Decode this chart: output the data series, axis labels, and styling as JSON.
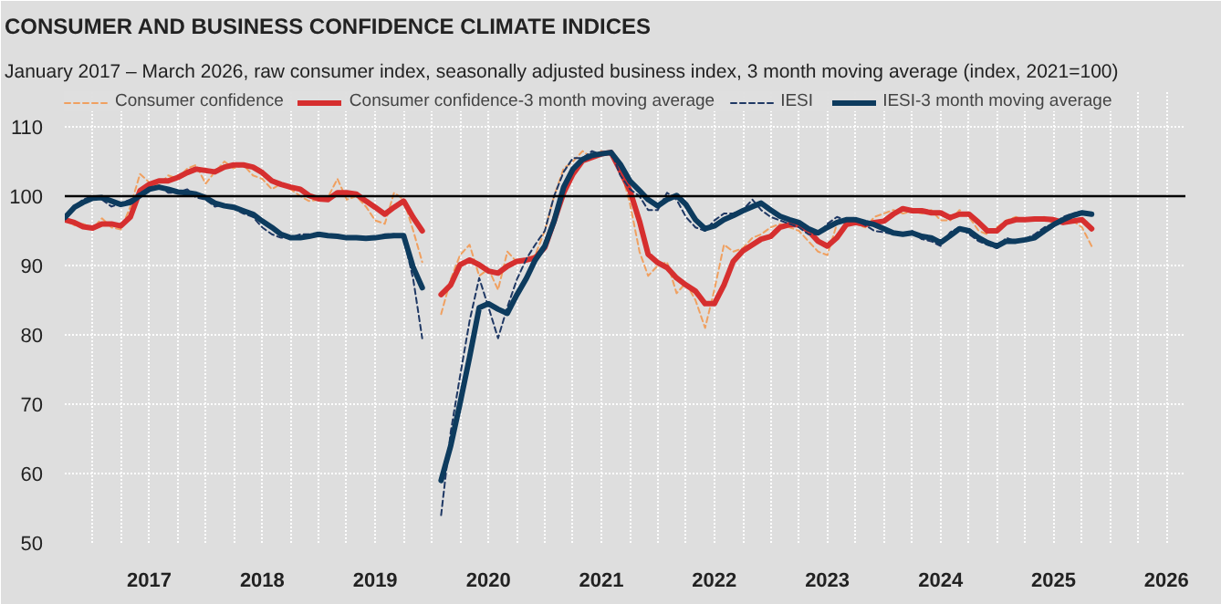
{
  "chart_data": {
    "type": "line",
    "title": "CONSUMER AND BUSINESS CONFIDENCE CLIMATE INDICES",
    "subtitle": "January 2017 – March 2026, raw consumer index, seasonally adjusted business index, 3 month moving average (index, 2021=100)",
    "x": [
      "2017-01",
      "2017-02",
      "2017-03",
      "2017-04",
      "2017-05",
      "2017-06",
      "2017-07",
      "2017-08",
      "2017-09",
      "2017-10",
      "2017-11",
      "2017-12",
      "2018-01",
      "2018-02",
      "2018-03",
      "2018-04",
      "2018-05",
      "2018-06",
      "2018-07",
      "2018-08",
      "2018-09",
      "2018-10",
      "2018-11",
      "2018-12",
      "2019-01",
      "2019-02",
      "2019-03",
      "2019-04",
      "2019-05",
      "2019-06",
      "2019-07",
      "2019-08",
      "2019-09",
      "2019-10",
      "2019-11",
      "2019-12",
      "2020-01",
      "2020-02",
      "2020-03",
      "2020-04",
      "2020-05",
      "2020-06",
      "2020-07",
      "2020-08",
      "2020-09",
      "2020-10",
      "2020-11",
      "2020-12",
      "2021-01",
      "2021-02",
      "2021-03",
      "2021-04",
      "2021-05",
      "2021-06",
      "2021-07",
      "2021-08",
      "2021-09",
      "2021-10",
      "2021-11",
      "2021-12",
      "2022-01",
      "2022-02",
      "2022-03",
      "2022-04",
      "2022-05",
      "2022-06",
      "2022-07",
      "2022-08",
      "2022-09",
      "2022-10",
      "2022-11",
      "2022-12",
      "2023-01",
      "2023-02",
      "2023-03",
      "2023-04",
      "2023-05",
      "2023-06",
      "2023-07",
      "2023-08",
      "2023-09",
      "2023-10",
      "2023-11",
      "2023-12",
      "2024-01",
      "2024-02",
      "2024-03",
      "2024-04",
      "2024-05",
      "2024-06",
      "2024-07",
      "2024-08",
      "2024-09",
      "2024-10",
      "2024-11",
      "2024-12",
      "2025-01",
      "2025-02",
      "2025-03",
      "2025-04",
      "2025-05",
      "2025-06",
      "2025-07",
      "2025-08",
      "2025-09",
      "2025-10",
      "2025-11",
      "2025-12",
      "2026-01",
      "2026-02"
    ],
    "series": [
      {
        "name": "Consumer confidence",
        "color": "#f0a060",
        "line_style": "dashed",
        "values": [
          97.0,
          95.8,
          96.0,
          95.3,
          96.8,
          95.5,
          95.2,
          98.5,
          103.2,
          102.0,
          101.5,
          103.0,
          102.5,
          104.0,
          104.5,
          101.8,
          103.5,
          105.0,
          104.0,
          104.5,
          103.0,
          102.5,
          101.0,
          101.8,
          101.0,
          100.0,
          99.3,
          99.5,
          99.8,
          102.5,
          99.5,
          100.0,
          98.5,
          96.5,
          96.0,
          100.5,
          99.5,
          95.0,
          90.5,
          null,
          83.0,
          88.0,
          91.5,
          93.0,
          88.5,
          89.5,
          86.5,
          92.0,
          90.5,
          91.0,
          91.5,
          95.0,
          100.0,
          104.0,
          105.0,
          106.5,
          105.5,
          106.5,
          106.0,
          104.0,
          99.0,
          92.0,
          88.5,
          90.0,
          90.5,
          86.0,
          87.5,
          85.0,
          81.0,
          86.5,
          93.0,
          92.0,
          92.5,
          94.0,
          94.5,
          95.5,
          96.0,
          95.5,
          95.0,
          93.5,
          92.0,
          91.5,
          96.0,
          96.5,
          96.0,
          95.5,
          97.0,
          97.5,
          98.0,
          97.5,
          97.8,
          97.5,
          98.0,
          96.5,
          96.5,
          98.0,
          97.0,
          95.0,
          94.5,
          95.5,
          96.5,
          97.0,
          96.5,
          96.8,
          97.0,
          96.0,
          96.5,
          96.5,
          95.5,
          92.8
        ]
      },
      {
        "name": "Consumer confidence-3 month moving average",
        "color": "#d62f2f",
        "line_style": "solid",
        "values": [
          96.6,
          96.2,
          95.6,
          95.4,
          96.0,
          96.0,
          95.7,
          97.0,
          100.8,
          101.7,
          102.2,
          102.2,
          102.7,
          103.4,
          103.9,
          103.7,
          103.5,
          104.2,
          104.5,
          104.5,
          104.2,
          103.4,
          102.2,
          101.7,
          101.3,
          101.0,
          100.1,
          99.6,
          99.5,
          100.5,
          100.5,
          100.3,
          99.3,
          98.4,
          97.4,
          98.4,
          99.3,
          96.9,
          95.0,
          null,
          85.8,
          87.2,
          90.1,
          90.8,
          90.1,
          89.2,
          88.9,
          89.9,
          90.6,
          90.8,
          91.1,
          92.6,
          96.4,
          100.5,
          103.2,
          105.1,
          105.6,
          106.1,
          106.3,
          103.7,
          100.8,
          96.4,
          91.6,
          90.4,
          89.7,
          88.2,
          87.2,
          86.3,
          84.5,
          84.5,
          87.2,
          90.6,
          92.1,
          93.0,
          93.8,
          94.2,
          95.5,
          95.9,
          95.9,
          95.0,
          93.5,
          92.8,
          94.0,
          95.9,
          96.2,
          95.9,
          96.2,
          96.4,
          97.4,
          98.2,
          97.9,
          97.9,
          97.6,
          97.6,
          96.9,
          97.4,
          97.4,
          96.2,
          95.0,
          95.0,
          96.2,
          96.6,
          96.6,
          96.7,
          96.7,
          96.6,
          96.2,
          96.4,
          96.6,
          95.3
        ]
      },
      {
        "name": "IESI",
        "color": "#1f3864",
        "line_style": "dashed",
        "values": [
          97.0,
          98.5,
          99.5,
          100.0,
          99.5,
          98.5,
          99.0,
          99.5,
          100.5,
          101.0,
          101.5,
          100.5,
          100.5,
          101.0,
          99.8,
          99.5,
          98.5,
          98.8,
          98.2,
          97.5,
          97.0,
          95.5,
          94.5,
          94.0,
          94.0,
          94.5,
          94.5,
          94.2,
          94.5,
          94.0,
          94.0,
          94.2,
          93.8,
          94.0,
          94.5,
          94.5,
          94.0,
          88.0,
          79.5,
          null,
          54.0,
          66.0,
          74.0,
          82.0,
          88.2,
          84.0,
          79.5,
          84.0,
          88.0,
          91.0,
          93.0,
          95.0,
          100.0,
          103.5,
          105.5,
          105.5,
          106.5,
          106.0,
          106.5,
          103.0,
          101.0,
          100.0,
          98.0,
          98.0,
          100.5,
          99.5,
          97.0,
          95.5,
          95.0,
          96.5,
          97.5,
          97.5,
          98.0,
          99.5,
          98.0,
          97.0,
          96.5,
          96.0,
          95.5,
          94.5,
          94.5,
          96.0,
          97.0,
          96.5,
          96.5,
          95.8,
          95.0,
          94.8,
          94.5,
          94.5,
          95.0,
          93.8,
          93.5,
          92.8,
          94.8,
          95.5,
          94.5,
          93.5,
          93.0,
          92.5,
          94.0,
          93.5,
          93.8,
          94.5,
          95.5,
          96.0,
          97.0,
          97.5,
          97.8,
          97.3
        ]
      },
      {
        "name": "IESI-3 month moving average",
        "color": "#0d3b5e",
        "line_style": "solid",
        "values": [
          96.9,
          98.4,
          99.1,
          99.7,
          99.8,
          99.3,
          98.8,
          99.1,
          100.1,
          101.0,
          101.3,
          101.0,
          100.6,
          100.5,
          100.3,
          99.8,
          99.0,
          98.6,
          98.4,
          97.9,
          97.4,
          96.4,
          95.5,
          94.5,
          94.0,
          94.0,
          94.2,
          94.5,
          94.3,
          94.2,
          94.0,
          94.0,
          93.9,
          94.0,
          94.2,
          94.3,
          94.3,
          89.7,
          86.8,
          null,
          59.0,
          64.0,
          70.1,
          76.8,
          83.9,
          84.5,
          83.7,
          83.1,
          85.8,
          88.2,
          90.8,
          92.8,
          96.4,
          101.3,
          103.9,
          105.3,
          105.9,
          106.1,
          106.3,
          104.6,
          102.2,
          100.8,
          99.5,
          98.6,
          99.5,
          100.1,
          98.8,
          96.6,
          95.3,
          95.7,
          96.6,
          97.2,
          97.9,
          98.5,
          99.0,
          98.0,
          97.1,
          96.6,
          96.2,
          95.3,
          94.7,
          95.5,
          96.2,
          96.6,
          96.6,
          96.2,
          95.9,
          95.3,
          94.7,
          94.5,
          94.7,
          94.2,
          94.0,
          93.3,
          94.3,
          95.3,
          95.0,
          94.0,
          93.3,
          92.8,
          93.5,
          93.5,
          93.7,
          94.0,
          95.0,
          95.9,
          96.6,
          97.2,
          97.6,
          97.4
        ]
      }
    ],
    "xlim": [
      "2017-01",
      "2026-12"
    ],
    "xticks": [
      {
        "value": "2017-04",
        "label": null
      },
      {
        "value": "2017-07",
        "label": null
      },
      {
        "value": "2017-10",
        "label": "2017"
      },
      {
        "value": "2018-01",
        "label": null
      },
      {
        "value": "2018-04",
        "label": null
      },
      {
        "value": "2018-07",
        "label": null
      },
      {
        "value": "2018-10",
        "label": "2018"
      },
      {
        "value": "2019-01",
        "label": null
      },
      {
        "value": "2019-04",
        "label": null
      },
      {
        "value": "2019-07",
        "label": null
      },
      {
        "value": "2019-10",
        "label": "2019"
      },
      {
        "value": "2020-01",
        "label": null
      },
      {
        "value": "2020-04",
        "label": null
      },
      {
        "value": "2020-07",
        "label": null
      },
      {
        "value": "2020-10",
        "label": "2020"
      },
      {
        "value": "2021-01",
        "label": null
      },
      {
        "value": "2021-04",
        "label": null
      },
      {
        "value": "2021-07",
        "label": null
      },
      {
        "value": "2021-10",
        "label": "2021"
      },
      {
        "value": "2022-01",
        "label": null
      },
      {
        "value": "2022-04",
        "label": null
      },
      {
        "value": "2022-07",
        "label": null
      },
      {
        "value": "2022-10",
        "label": "2022"
      },
      {
        "value": "2023-01",
        "label": null
      },
      {
        "value": "2023-04",
        "label": null
      },
      {
        "value": "2023-07",
        "label": null
      },
      {
        "value": "2023-10",
        "label": "2023"
      },
      {
        "value": "2024-01",
        "label": null
      },
      {
        "value": "2024-04",
        "label": null
      },
      {
        "value": "2024-07",
        "label": null
      },
      {
        "value": "2024-10",
        "label": "2024"
      },
      {
        "value": "2025-01",
        "label": null
      },
      {
        "value": "2025-04",
        "label": null
      },
      {
        "value": "2025-07",
        "label": null
      },
      {
        "value": "2025-10",
        "label": "2025"
      },
      {
        "value": "2026-01",
        "label": null
      },
      {
        "value": "2026-04",
        "label": null
      },
      {
        "value": "2026-07",
        "label": null
      },
      {
        "value": "2026-10",
        "label": "2026"
      }
    ],
    "ylim": [
      50,
      115
    ],
    "yticks": [
      50,
      60,
      70,
      80,
      90,
      100,
      110
    ],
    "ref_lines": [
      {
        "axis": "y",
        "value": 100,
        "color": "#000000"
      }
    ],
    "grid": true,
    "legend": "top"
  }
}
